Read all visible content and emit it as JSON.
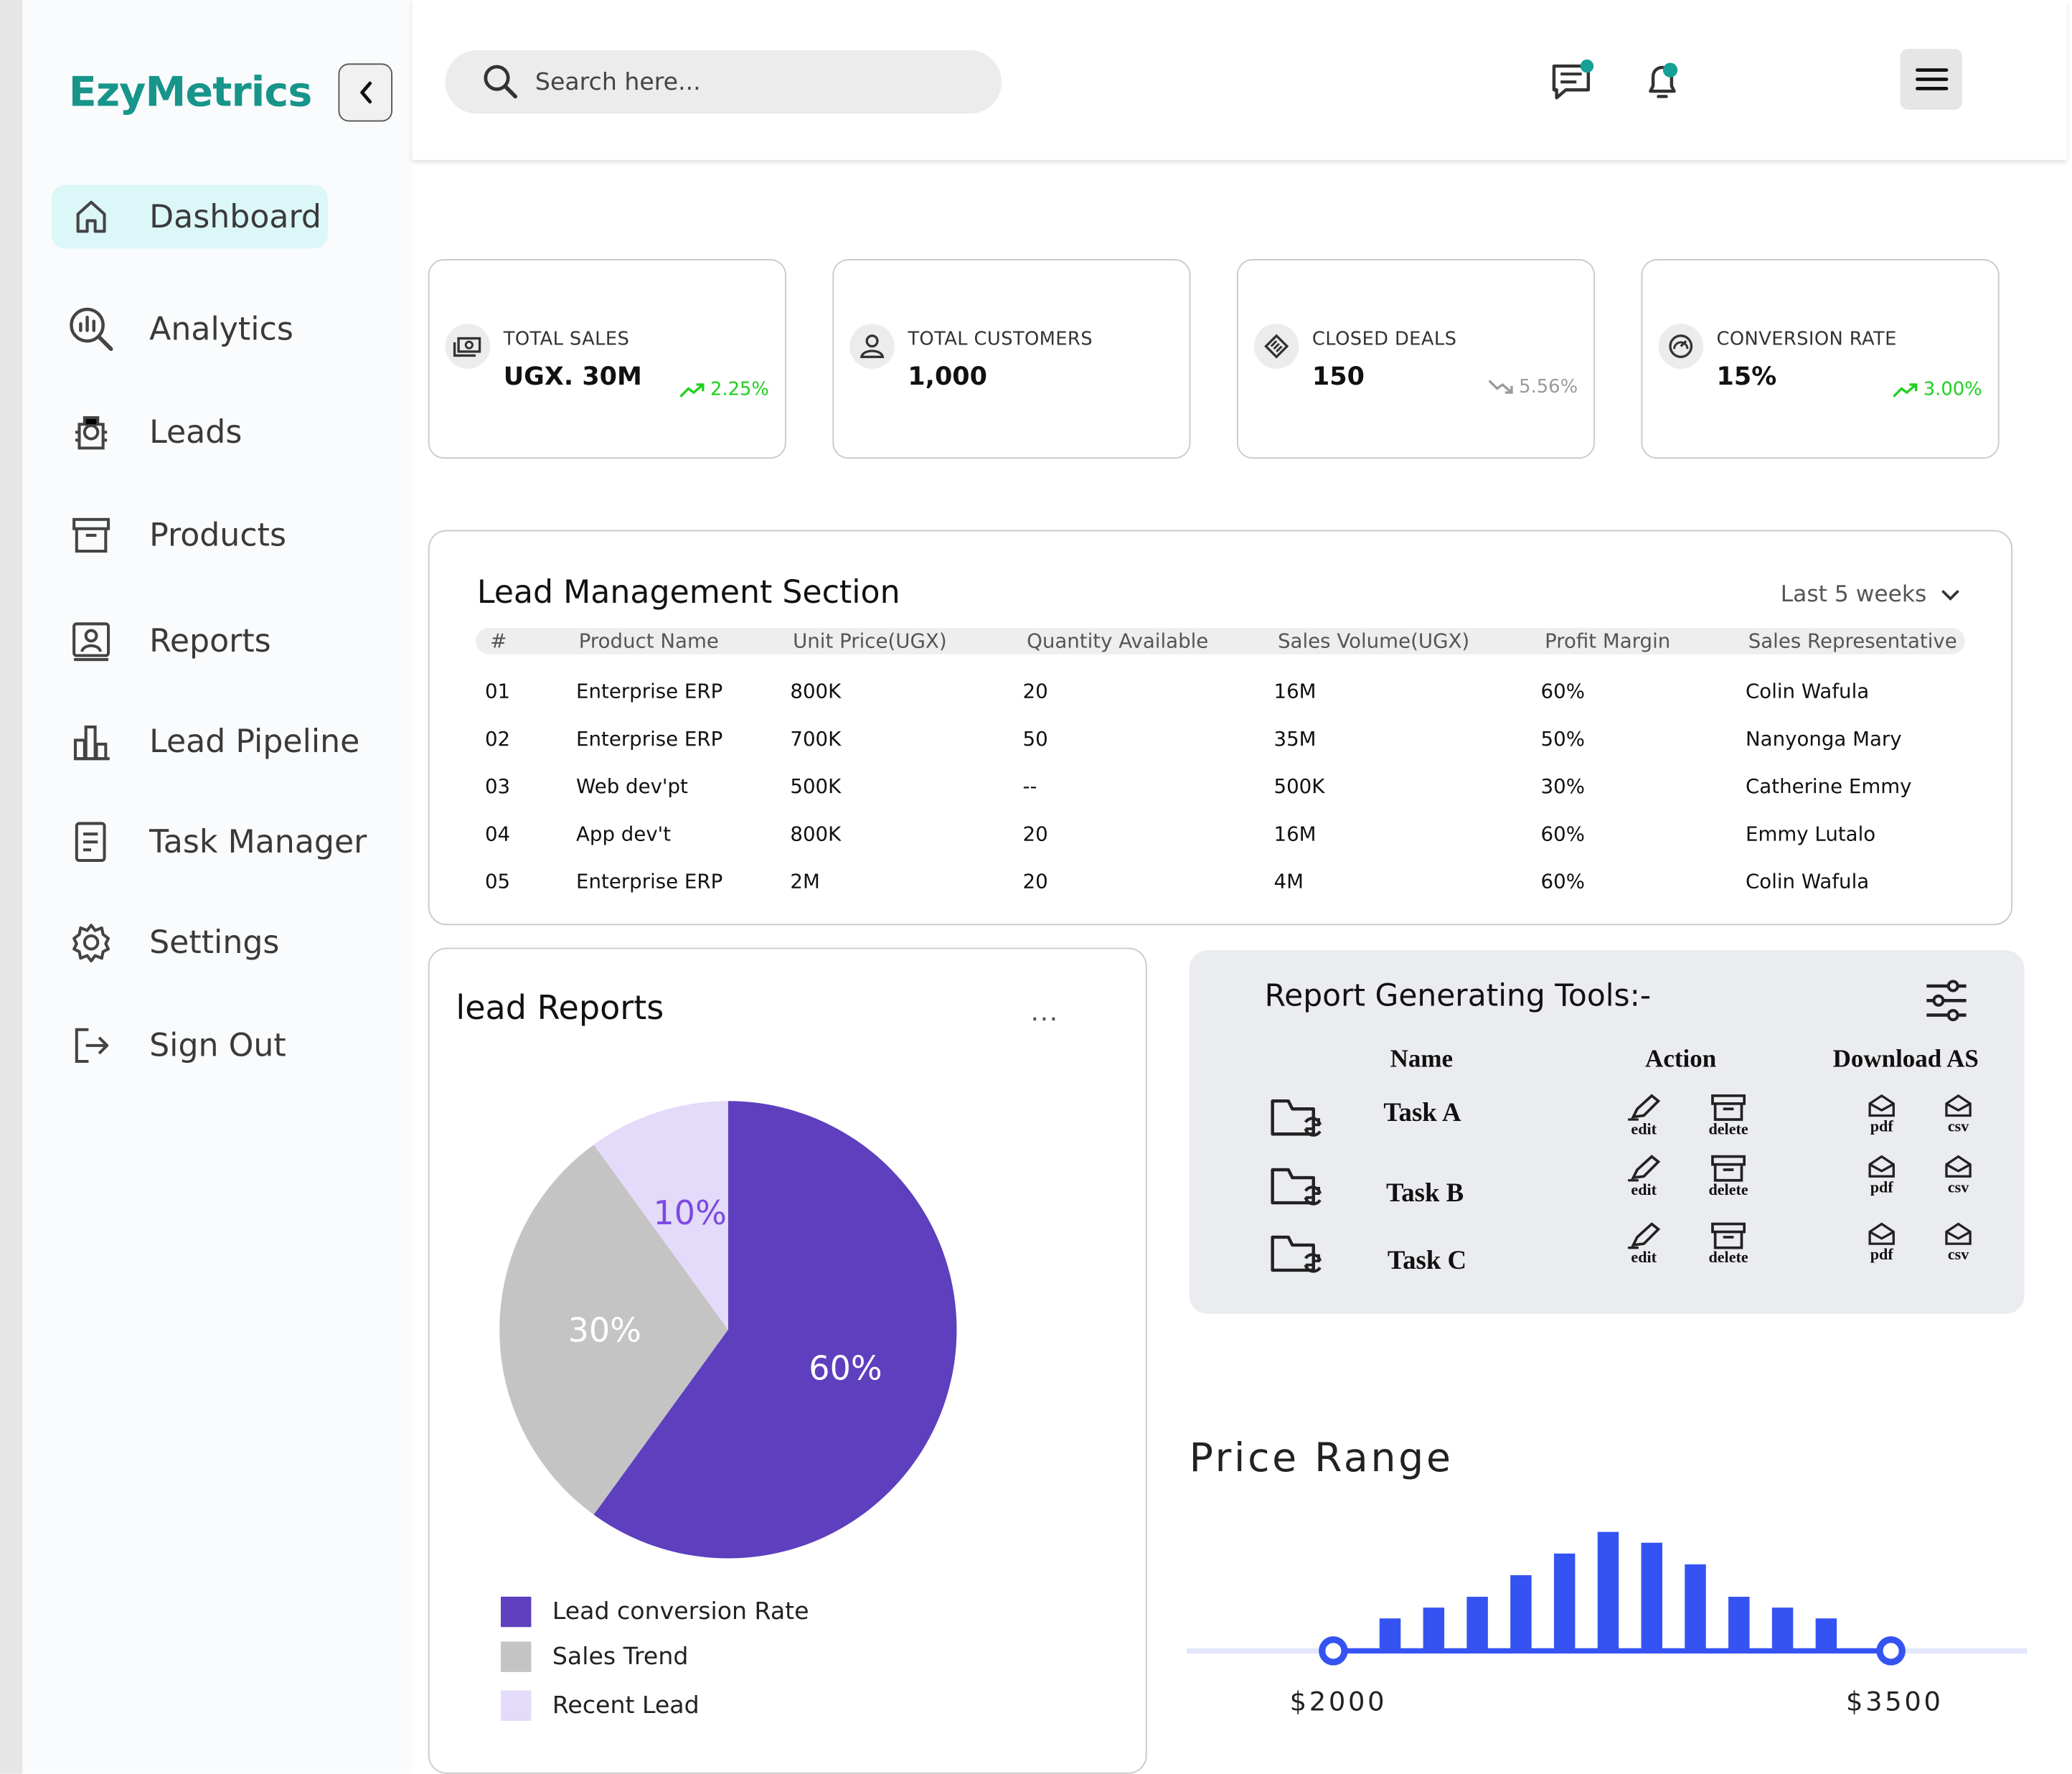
{
  "brand": "EzyMetrics",
  "sidebar": {
    "items": [
      {
        "label": "Dashboard",
        "icon": "home-icon",
        "active": true
      },
      {
        "label": "Analytics",
        "icon": "analytics-icon"
      },
      {
        "label": "Leads",
        "icon": "leads-icon"
      },
      {
        "label": "Products",
        "icon": "archive-box-icon"
      },
      {
        "label": "Reports",
        "icon": "reports-icon"
      },
      {
        "label": "Lead Pipeline",
        "icon": "bar-chart-icon"
      },
      {
        "label": "Task Manager",
        "icon": "document-icon"
      },
      {
        "label": "Settings",
        "icon": "gear-icon"
      },
      {
        "label": "Sign Out",
        "icon": "sign-out-icon"
      }
    ]
  },
  "header": {
    "search_placeholder": "Search here..."
  },
  "stats": [
    {
      "title": "TOTAL SALES",
      "value": "UGX. 30M",
      "change": "2.25%",
      "trend": "up",
      "icon": "money-icon"
    },
    {
      "title": "TOTAL CUSTOMERS",
      "value": "1,000",
      "change": "",
      "trend": "",
      "icon": "user-icon"
    },
    {
      "title": "CLOSED DEALS",
      "value": "150",
      "change": "5.56%",
      "trend": "down",
      "icon": "handshake-icon"
    },
    {
      "title": "CONVERSION RATE",
      "value": "15%",
      "change": "3.00%",
      "trend": "up",
      "icon": "gauge-icon"
    }
  ],
  "lead_management": {
    "title": "Lead Management Section",
    "filter": "Last 5 weeks",
    "columns": [
      "#",
      "Product Name",
      "Unit Price(UGX)",
      "Quantity Available",
      "Sales Volume(UGX)",
      "Profit Margin",
      "Sales Representative"
    ],
    "rows": [
      [
        "01",
        "Enterprise ERP",
        "800K",
        "20",
        "16M",
        "60%",
        "Colin Wafula"
      ],
      [
        "02",
        "Enterprise ERP",
        "700K",
        "50",
        "35M",
        "50%",
        "Nanyonga Mary"
      ],
      [
        "03",
        "Web dev'pt",
        "500K",
        "--",
        "500K",
        "30%",
        "Catherine Emmy"
      ],
      [
        "04",
        "App dev't",
        "800K",
        "20",
        "16M",
        "60%",
        "Emmy Lutalo"
      ],
      [
        "05",
        "Enterprise ERP",
        "2M",
        "20",
        "4M",
        "60%",
        "Colin Wafula"
      ]
    ]
  },
  "lead_reports": {
    "title": "lead Reports",
    "more": "...",
    "chart_data": {
      "type": "pie",
      "slices": [
        {
          "name": "Lead conversion Rate",
          "value": 60,
          "label": "60%",
          "color": "#5e3fbe"
        },
        {
          "name": "Sales Trend",
          "value": 30,
          "label": "30%",
          "color": "#c4c4c4"
        },
        {
          "name": "Recent Lead",
          "value": 10,
          "label": "10%",
          "color": "#e4daf9"
        }
      ],
      "legend_position": "bottom-left"
    }
  },
  "tools": {
    "title": "Report Generating Tools:-",
    "columns": [
      "Name",
      "Action",
      "Download AS"
    ],
    "tasks": [
      "Task A",
      "Task B",
      "Task C"
    ],
    "edit_label": "edit",
    "delete_label": "delete",
    "pdf_label": "pdf",
    "csv_label": "csv"
  },
  "price_range": {
    "title": "Price Range",
    "min_label": "$2000",
    "max_label": "$3500",
    "accent": "#3553f2",
    "chart_data": {
      "type": "bar",
      "values": [
        3,
        4,
        5,
        7,
        9,
        11,
        10,
        8,
        5,
        4,
        3
      ]
    }
  }
}
